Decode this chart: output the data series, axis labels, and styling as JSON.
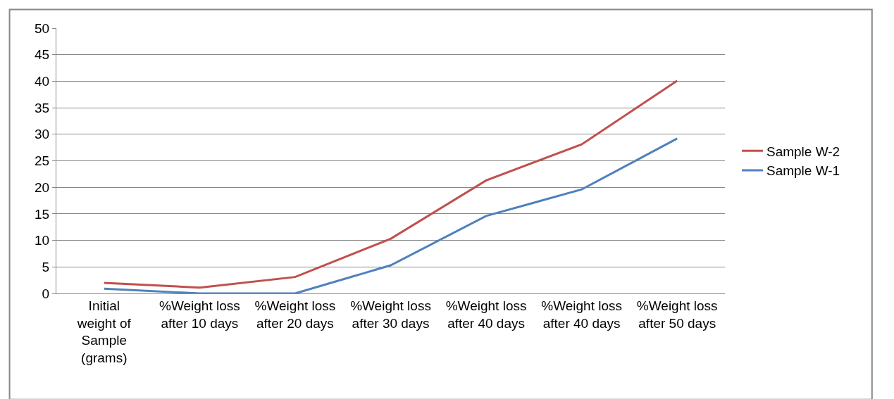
{
  "chart_data": {
    "type": "line",
    "categories": [
      "Initial weight of Sample (grams)",
      "%Weight loss after 10 days",
      "%Weight loss after 20 days",
      "%Weight loss after 30 days",
      "%Weight loss after 40 days",
      "%Weight loss after 40 days",
      "%Weight loss after 50 days"
    ],
    "series": [
      {
        "name": "Sample W-2",
        "color": "#c0504d",
        "values": [
          2.0,
          1.1,
          3.1,
          10.3,
          21.3,
          28.1,
          40.1
        ]
      },
      {
        "name": "Sample W-1",
        "color": "#4f81bd",
        "values": [
          0.9,
          0,
          0,
          5.3,
          14.6,
          19.6,
          29.2
        ]
      }
    ],
    "ylim": [
      0,
      50
    ],
    "yticks": [
      0,
      5,
      10,
      15,
      20,
      25,
      30,
      35,
      40,
      45,
      50
    ],
    "grid": "y",
    "legend": "right",
    "marker": "none",
    "line_style": "solid"
  }
}
